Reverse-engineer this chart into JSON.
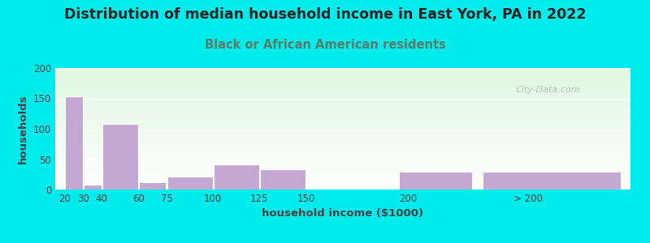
{
  "title": "Distribution of median household income in East York, PA in 2022",
  "subtitle": "Black or African American residents",
  "xlabel": "household income ($1000)",
  "ylabel": "households",
  "background_color": "#00ECEC",
  "bar_color": "#C3A8D1",
  "categories": [
    "20",
    "30",
    "40",
    "60",
    "75",
    "100",
    "125",
    "150",
    "200",
    "> 200"
  ],
  "values": [
    153,
    8,
    108,
    12,
    21,
    41,
    34,
    0,
    30,
    30
  ],
  "ylim": [
    0,
    200
  ],
  "yticks": [
    0,
    50,
    100,
    150,
    200
  ],
  "title_fontsize": 12.5,
  "subtitle_fontsize": 10.5,
  "axis_label_fontsize": 9.5,
  "tick_fontsize": 8.5,
  "watermark_text": "City-Data.com",
  "title_color": "#222222",
  "subtitle_color": "#5a7a6a",
  "axis_color": "#444444"
}
